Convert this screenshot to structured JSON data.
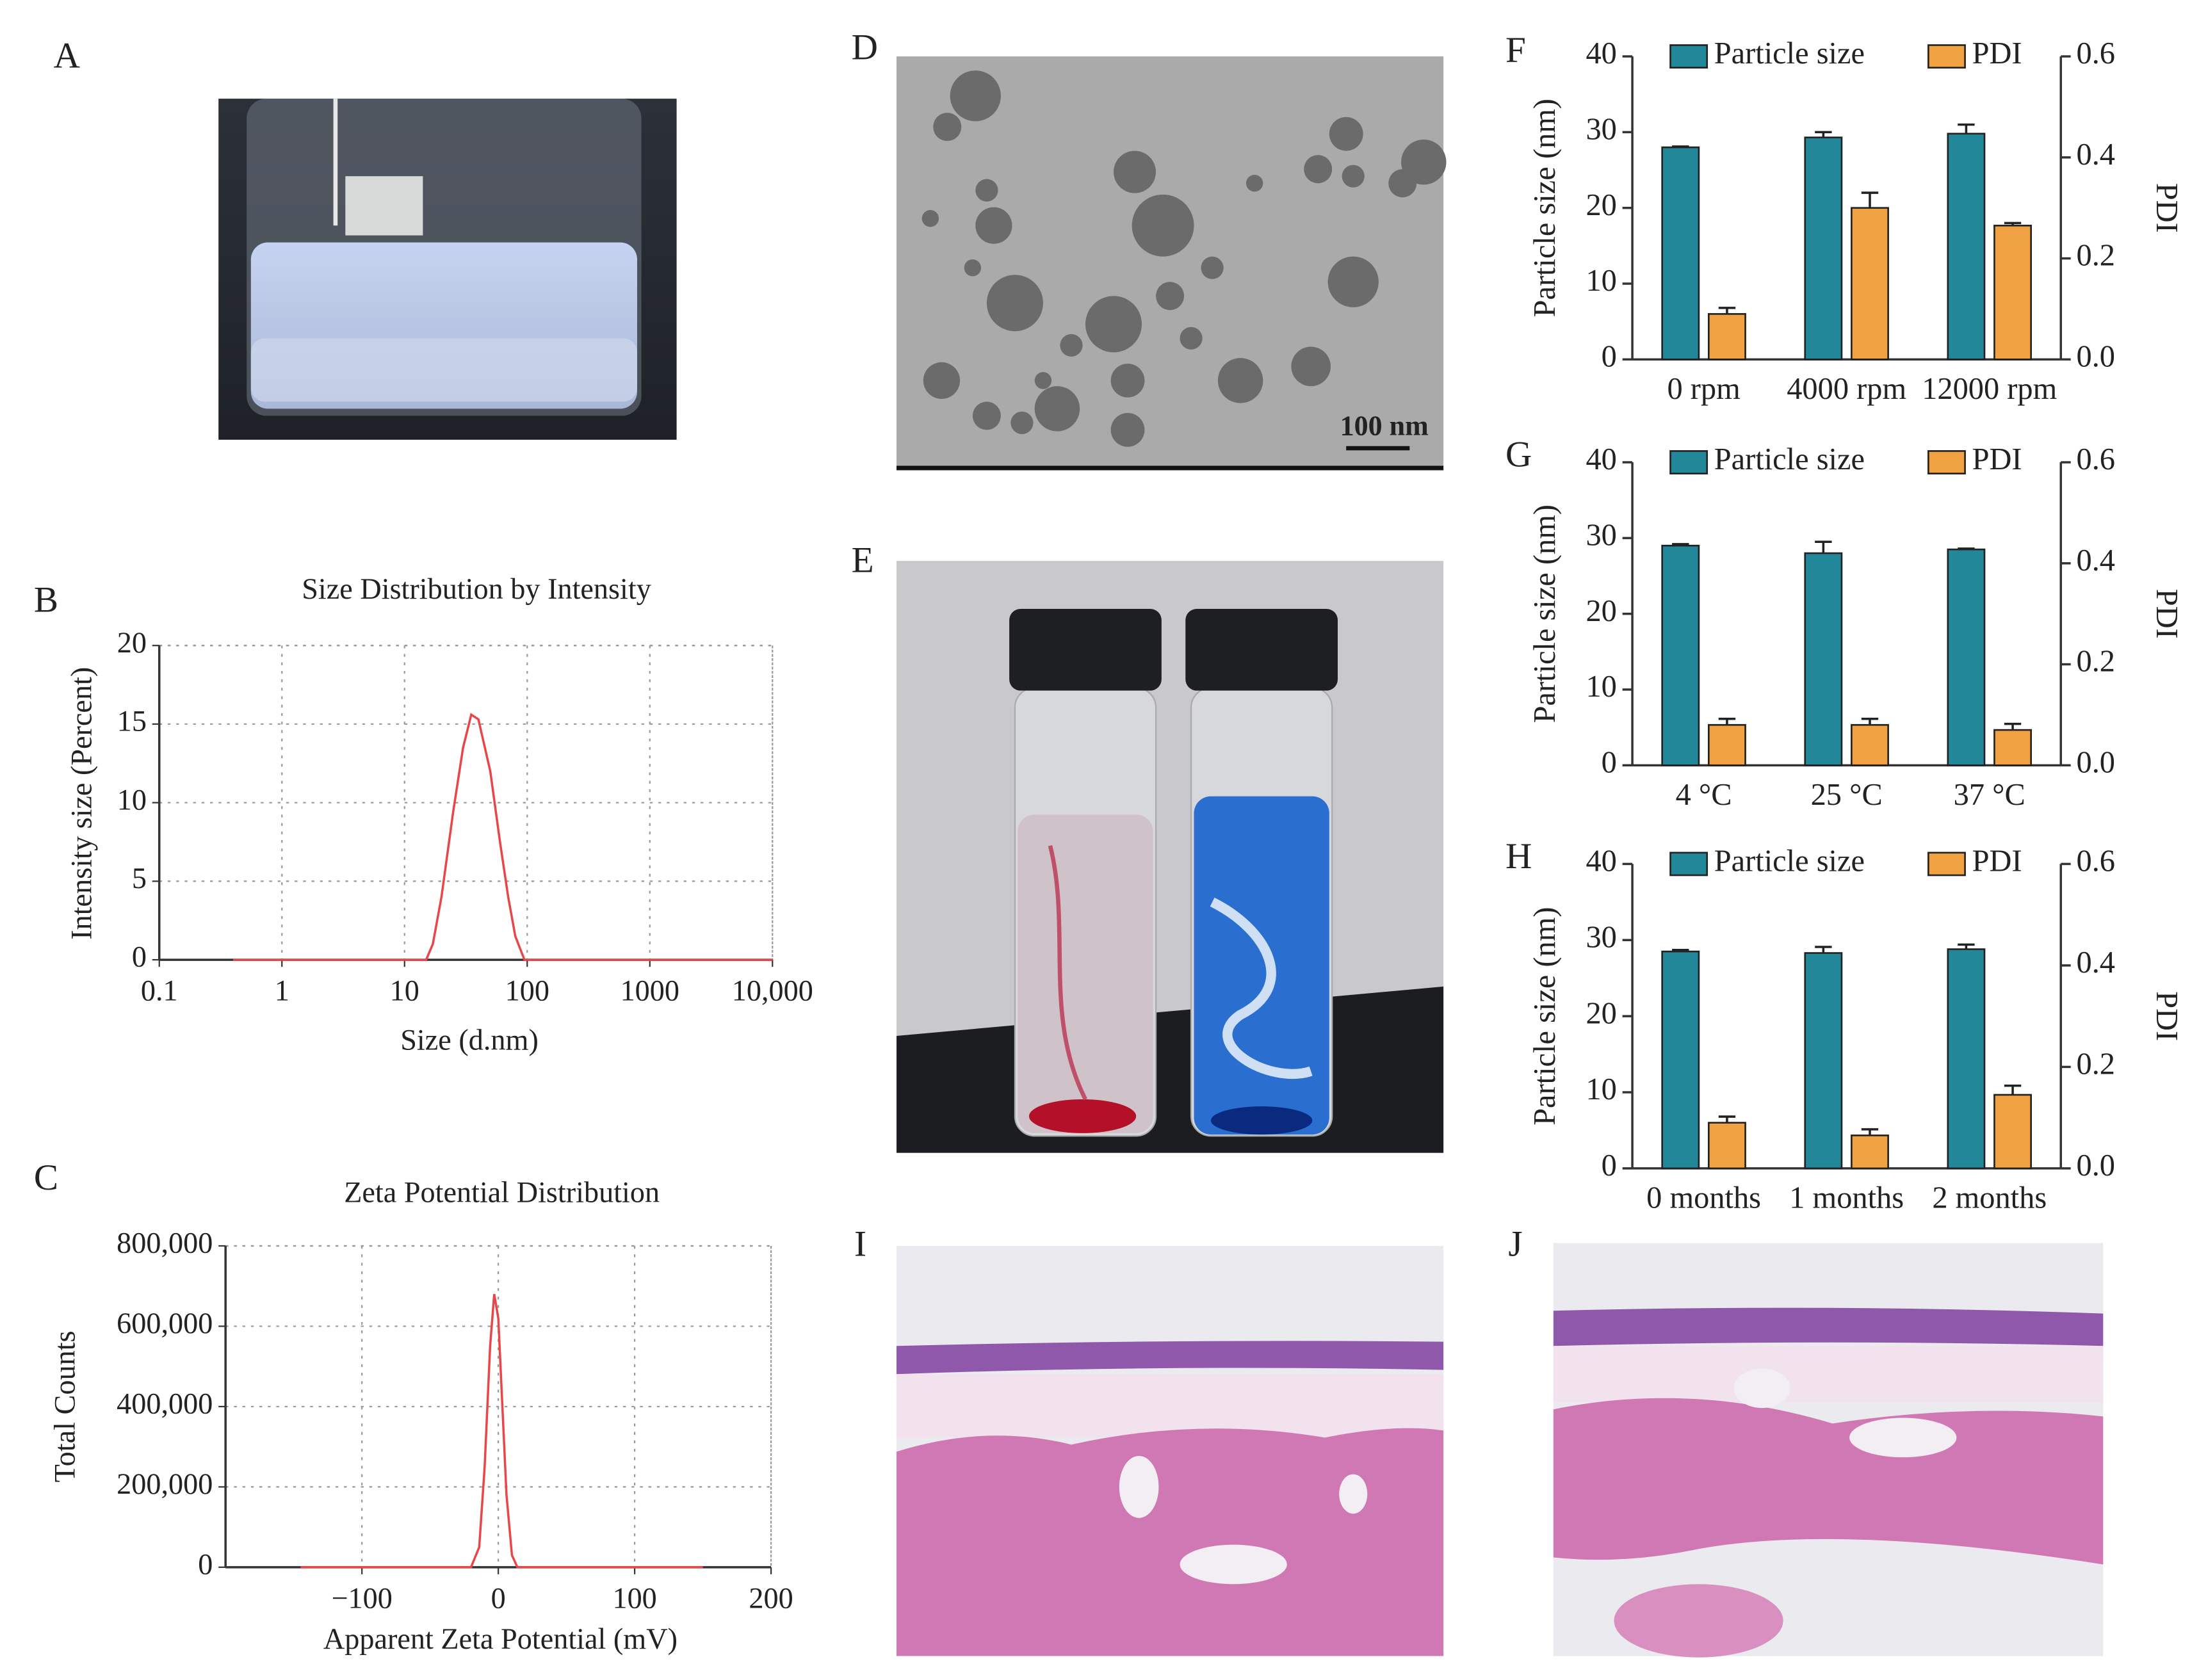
{
  "panel_labels": [
    "A",
    "B",
    "C",
    "D",
    "E",
    "F",
    "G",
    "H",
    "I",
    "J"
  ],
  "scale_bar": "100 nm",
  "chart_data": [
    {
      "type": "line",
      "title": "Size Distribution by Intensity",
      "x_label": "Size (d.nm)",
      "y_label": "Intensity  size (Percent)",
      "xscale": "log",
      "grid": true,
      "color": "#e8474a",
      "x": [
        0.4,
        15,
        17,
        20,
        25,
        30,
        35,
        40,
        50,
        60,
        70,
        80,
        95,
        10000
      ],
      "values": [
        0,
        0,
        1,
        4,
        9.5,
        13.5,
        15.6,
        15.3,
        12,
        7.5,
        4,
        1.5,
        0,
        0
      ],
      "xlim": [
        0.1,
        10000
      ],
      "xticks": [
        0.1,
        1,
        10,
        100,
        1000,
        {
          "value": 10000,
          "label": "10,000"
        }
      ],
      "ylim": [
        0,
        20
      ],
      "yticks": [
        0,
        5,
        10,
        15,
        20
      ]
    },
    {
      "type": "line",
      "title": "Zeta Potential Distribution",
      "x_label": "Apparent Zeta Potential (mV)",
      "y_label": "Total  Counts",
      "grid": true,
      "color": "#e8474a",
      "x": [
        -145,
        -20,
        -14,
        -10,
        -6,
        -3,
        0,
        3,
        6,
        10,
        14,
        150
      ],
      "values": [
        0,
        0,
        50000,
        250000,
        550000,
        680000,
        620000,
        400000,
        180000,
        30000,
        0,
        0
      ],
      "xlim": [
        -200,
        200
      ],
      "xticks": [
        {
          "value": -100,
          "label": "−100"
        },
        0,
        100,
        200
      ],
      "ylim": [
        0,
        800000
      ],
      "yticks": [
        0,
        {
          "value": 200000,
          "label": "200,000"
        },
        {
          "value": 400000,
          "label": "400,000"
        },
        {
          "value": 600000,
          "label": "600,000"
        },
        {
          "value": 800000,
          "label": "800,000"
        }
      ]
    },
    {
      "type": "bar",
      "y_label": "Particle size (nm)",
      "y2_label": "PDI",
      "legend": "top",
      "categories": [
        "0 rpm",
        "4000 rpm",
        "12000 rpm"
      ],
      "series": [
        {
          "name": "Particle size",
          "color": "#23879a",
          "values": [
            28,
            29.3,
            29.8
          ],
          "errors": [
            0.1,
            0.7,
            1.2
          ]
        },
        {
          "name": "PDI",
          "color": "#f0a242",
          "axis": "y2",
          "values": [
            0.09,
            0.3,
            0.265
          ],
          "errors": [
            0.012,
            0.03,
            0.005
          ]
        }
      ],
      "ylim": [
        0,
        40
      ],
      "yticks": [
        0,
        10,
        20,
        30,
        40
      ],
      "y2lim": [
        0,
        0.6
      ],
      "y2ticks": [
        {
          "value": 0,
          "label": "0.0"
        },
        0.2,
        0.4,
        0.6
      ]
    },
    {
      "type": "bar",
      "y_label": "Particle size (nm)",
      "y2_label": "PDI",
      "legend": "top",
      "categories": [
        "4 °C",
        "25 °C",
        "37 °C"
      ],
      "series": [
        {
          "name": "Particle size",
          "color": "#23879a",
          "values": [
            29,
            28,
            28.5
          ],
          "errors": [
            0.2,
            1.5,
            0.1
          ]
        },
        {
          "name": "PDI",
          "color": "#f0a242",
          "axis": "y2",
          "values": [
            0.08,
            0.08,
            0.07
          ],
          "errors": [
            0.012,
            0.012,
            0.012
          ]
        }
      ],
      "ylim": [
        0,
        40
      ],
      "yticks": [
        0,
        10,
        20,
        30,
        40
      ],
      "y2lim": [
        0,
        0.6
      ],
      "y2ticks": [
        {
          "value": 0,
          "label": "0.0"
        },
        0.2,
        0.4,
        0.6
      ]
    },
    {
      "type": "bar",
      "y_label": "Particle size (nm)",
      "y2_label": "PDI",
      "legend": "top",
      "categories": [
        "0 months",
        "1 months",
        "2 months"
      ],
      "series": [
        {
          "name": "Particle size",
          "color": "#23879a",
          "values": [
            28.5,
            28.3,
            28.8
          ],
          "errors": [
            0.2,
            0.8,
            0.6
          ]
        },
        {
          "name": "PDI",
          "color": "#f0a242",
          "axis": "y2",
          "values": [
            0.09,
            0.065,
            0.145
          ],
          "errors": [
            0.012,
            0.012,
            0.018
          ]
        }
      ],
      "ylim": [
        0,
        40
      ],
      "yticks": [
        0,
        10,
        20,
        30,
        40
      ],
      "y2lim": [
        0,
        0.6
      ],
      "y2ticks": [
        {
          "value": 0,
          "label": "0.0"
        },
        0.2,
        0.4,
        0.6
      ]
    }
  ]
}
